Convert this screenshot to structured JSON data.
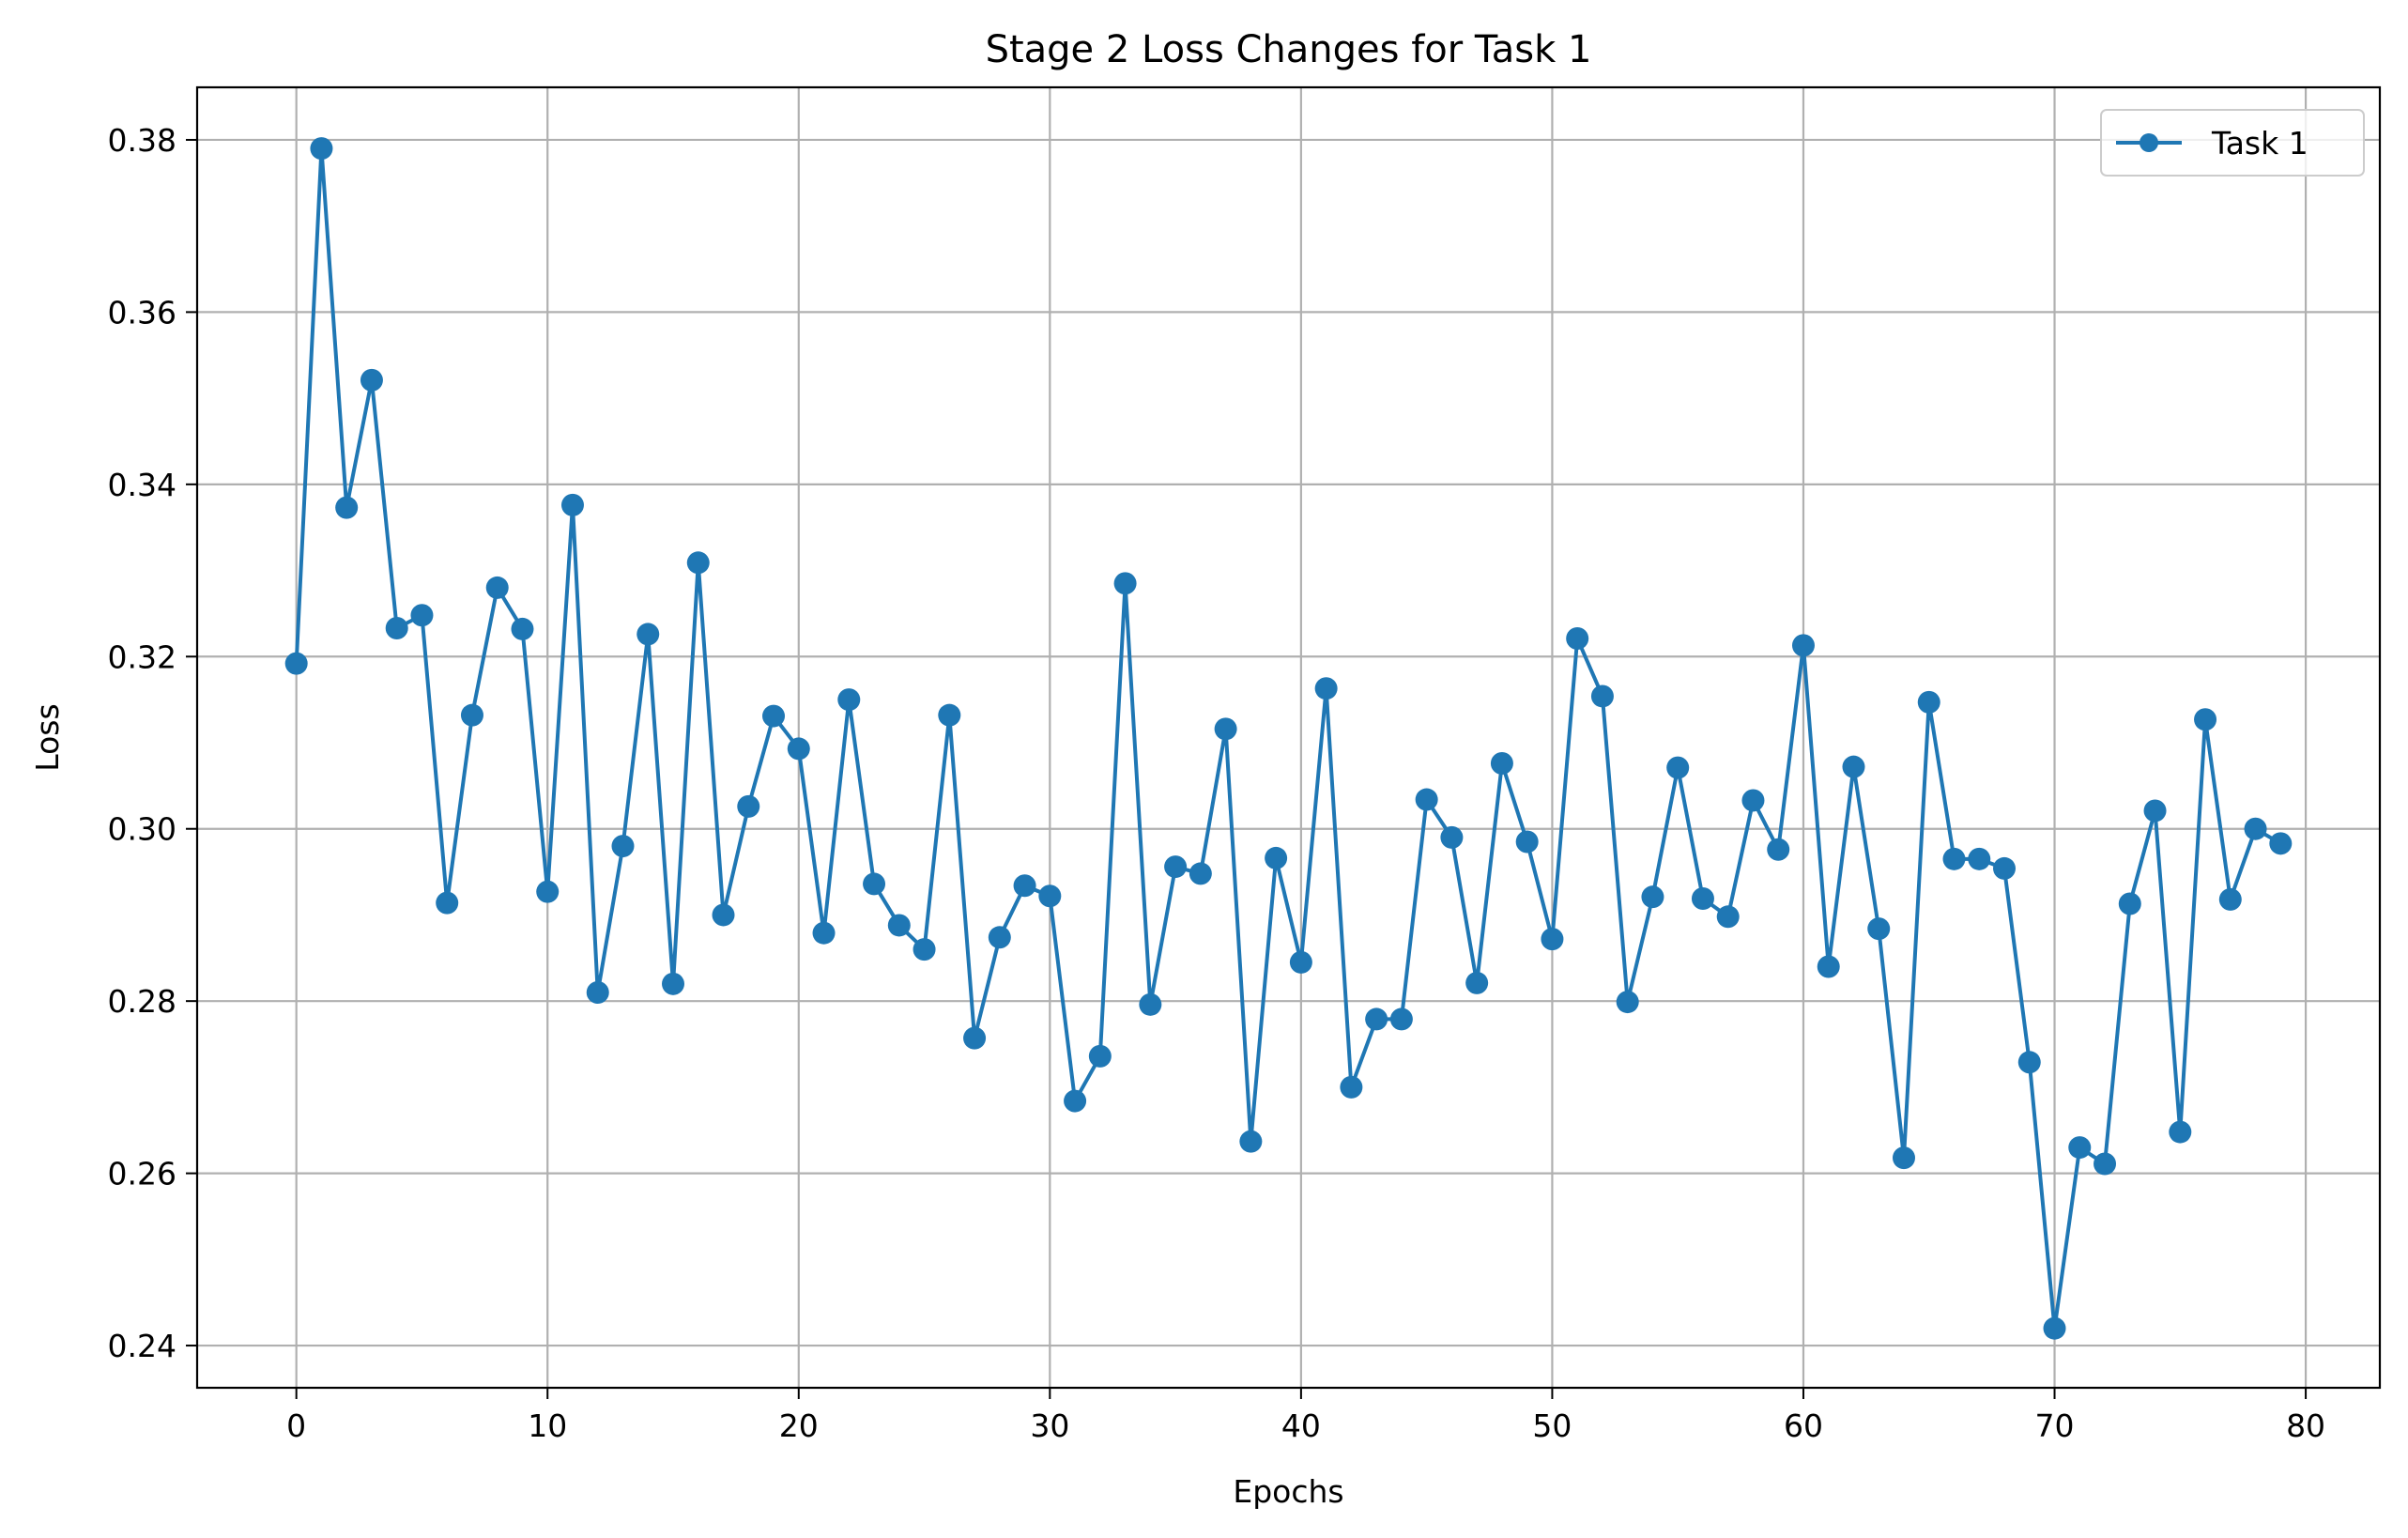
{
  "chart_data": {
    "type": "line",
    "title": "Stage 2 Loss Changes for Task 1",
    "xlabel": "Epochs",
    "ylabel": "Loss",
    "xlim": [
      -3.95,
      82.95
    ],
    "ylim": [
      0.2351,
      0.3861
    ],
    "x_ticks": [
      0,
      10,
      20,
      30,
      40,
      50,
      60,
      70,
      80
    ],
    "y_ticks": [
      0.24,
      0.26,
      0.28,
      0.3,
      0.32,
      0.34,
      0.36,
      0.38
    ],
    "x_tick_labels": [
      "0",
      "10",
      "20",
      "30",
      "40",
      "50",
      "60",
      "70",
      "80"
    ],
    "y_tick_labels": [
      "0.24",
      "0.26",
      "0.28",
      "0.30",
      "0.32",
      "0.34",
      "0.36",
      "0.38"
    ],
    "grid": true,
    "legend_position": "top-right",
    "colors": {
      "series": "#1f77b4",
      "grid": "#b0b0b0",
      "axis": "#000000"
    },
    "x": [
      0,
      1,
      2,
      3,
      4,
      5,
      6,
      7,
      8,
      9,
      10,
      11,
      12,
      13,
      14,
      15,
      16,
      17,
      18,
      19,
      20,
      21,
      22,
      23,
      24,
      25,
      26,
      27,
      28,
      29,
      30,
      31,
      32,
      33,
      34,
      35,
      36,
      37,
      38,
      39,
      40,
      41,
      42,
      43,
      44,
      45,
      46,
      47,
      48,
      49,
      50,
      51,
      52,
      53,
      54,
      55,
      56,
      57,
      58,
      59,
      60,
      61,
      62,
      63,
      64,
      65,
      66,
      67,
      68,
      69,
      70,
      71,
      72,
      73,
      74,
      75,
      76,
      77,
      78,
      79
    ],
    "series": [
      {
        "name": "Task 1",
        "marker": "circle",
        "values": [
          0.3192,
          0.379,
          0.3373,
          0.3521,
          0.3233,
          0.3248,
          0.2914,
          0.3132,
          0.328,
          0.3232,
          0.2927,
          0.3376,
          0.281,
          0.298,
          0.3226,
          0.282,
          0.3309,
          0.29,
          0.3026,
          0.3131,
          0.3093,
          0.2879,
          0.315,
          0.2936,
          0.2888,
          0.286,
          0.3132,
          0.2757,
          0.2874,
          0.2934,
          0.2922,
          0.2684,
          0.2736,
          0.3285,
          0.2796,
          0.2956,
          0.2948,
          0.3116,
          0.2637,
          0.2966,
          0.2845,
          0.3163,
          0.27,
          0.2779,
          0.2779,
          0.3034,
          0.299,
          0.2821,
          0.3076,
          0.2985,
          0.2872,
          0.3221,
          0.3154,
          0.2799,
          0.2921,
          0.3071,
          0.2919,
          0.2898,
          0.3033,
          0.2976,
          0.3213,
          0.284,
          0.3072,
          0.2884,
          0.2618,
          0.3147,
          0.2965,
          0.2965,
          0.2954,
          0.2729,
          0.242,
          0.263,
          0.2611,
          0.2913,
          0.3021,
          0.2648,
          0.3127,
          0.2918,
          0.3,
          0.2983
        ]
      }
    ]
  }
}
